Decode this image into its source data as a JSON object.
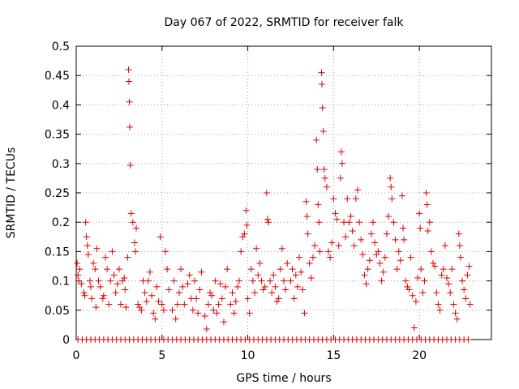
{
  "chart_data": {
    "type": "scatter",
    "title": "Day 067 of 2022, SRMTID for receiver falk",
    "xlabel": "GPS time / hours",
    "ylabel": "SRMTID / TECUs",
    "xlim": [
      0,
      24.2
    ],
    "ylim": [
      0,
      0.5
    ],
    "xticks": [
      0,
      5,
      10,
      15,
      20
    ],
    "xtick_labels": [
      "0",
      "5",
      "10",
      "15",
      "20"
    ],
    "yticks": [
      0,
      0.05,
      0.1,
      0.15,
      0.2,
      0.25,
      0.3,
      0.35,
      0.4,
      0.45,
      0.5
    ],
    "ytick_labels": [
      "0",
      "0.05",
      "0.1",
      "0.15",
      "0.2",
      "0.25",
      "0.3",
      "0.35",
      "0.4",
      "0.45",
      "0.5"
    ],
    "grid": true,
    "marker": "+",
    "color": "#dd0000",
    "series": [
      {
        "points": [
          [
            0.05,
            0.13
          ],
          [
            0.1,
            0.11
          ],
          [
            0.15,
            0.1
          ],
          [
            0.2,
            0.12
          ],
          [
            0.3,
            0.095
          ],
          [
            0.45,
            0.08
          ],
          [
            0.5,
            0.075
          ],
          [
            0.55,
            0.2
          ],
          [
            0.6,
            0.175
          ],
          [
            0.65,
            0.16
          ],
          [
            0.7,
            0.145
          ],
          [
            0.8,
            0.1
          ],
          [
            0.85,
            0.09
          ],
          [
            0.9,
            0.07
          ],
          [
            1.0,
            0.13
          ],
          [
            1.1,
            0.12
          ],
          [
            1.15,
            0.055
          ],
          [
            1.2,
            0.155
          ],
          [
            1.3,
            0.1
          ],
          [
            1.4,
            0.09
          ],
          [
            1.55,
            0.07
          ],
          [
            1.6,
            0.075
          ],
          [
            1.7,
            0.14
          ],
          [
            1.8,
            0.12
          ],
          [
            1.9,
            0.06
          ],
          [
            2.0,
            0.1
          ],
          [
            2.1,
            0.15
          ],
          [
            2.2,
            0.11
          ],
          [
            2.3,
            0.08
          ],
          [
            2.4,
            0.095
          ],
          [
            2.5,
            0.12
          ],
          [
            2.6,
            0.06
          ],
          [
            2.7,
            0.1
          ],
          [
            2.8,
            0.105
          ],
          [
            2.85,
            0.085
          ],
          [
            2.9,
            0.055
          ],
          [
            3.0,
            0.14
          ],
          [
            3.05,
            0.46
          ],
          [
            3.07,
            0.44
          ],
          [
            3.1,
            0.405
          ],
          [
            3.12,
            0.362
          ],
          [
            3.15,
            0.297
          ],
          [
            3.2,
            0.215
          ],
          [
            3.3,
            0.2
          ],
          [
            3.4,
            0.165
          ],
          [
            3.45,
            0.15
          ],
          [
            3.5,
            0.19
          ],
          [
            3.6,
            0.06
          ],
          [
            3.7,
            0.055
          ],
          [
            3.8,
            0.05
          ],
          [
            3.9,
            0.1
          ],
          [
            4.0,
            0.08
          ],
          [
            4.1,
            0.065
          ],
          [
            4.2,
            0.1
          ],
          [
            4.3,
            0.115
          ],
          [
            4.4,
            0.075
          ],
          [
            4.5,
            0.045
          ],
          [
            4.6,
            0.035
          ],
          [
            4.7,
            0.09
          ],
          [
            4.8,
            0.065
          ],
          [
            4.9,
            0.175
          ],
          [
            5.0,
            0.06
          ],
          [
            5.1,
            0.05
          ],
          [
            5.2,
            0.15
          ],
          [
            5.3,
            0.12
          ],
          [
            5.4,
            0.085
          ],
          [
            5.6,
            0.05
          ],
          [
            5.7,
            0.1
          ],
          [
            5.8,
            0.035
          ],
          [
            5.9,
            0.06
          ],
          [
            6.0,
            0.08
          ],
          [
            6.1,
            0.12
          ],
          [
            6.2,
            0.09
          ],
          [
            6.3,
            0.06
          ],
          [
            6.5,
            0.095
          ],
          [
            6.6,
            0.11
          ],
          [
            6.7,
            0.07
          ],
          [
            6.8,
            0.05
          ],
          [
            6.9,
            0.1
          ],
          [
            7.0,
            0.07
          ],
          [
            7.1,
            0.045
          ],
          [
            7.2,
            0.085
          ],
          [
            7.3,
            0.115
          ],
          [
            7.5,
            0.04
          ],
          [
            7.6,
            0.018
          ],
          [
            7.7,
            0.06
          ],
          [
            7.8,
            0.08
          ],
          [
            7.9,
            0.075
          ],
          [
            8.0,
            0.05
          ],
          [
            8.1,
            0.1
          ],
          [
            8.2,
            0.045
          ],
          [
            8.3,
            0.06
          ],
          [
            8.4,
            0.095
          ],
          [
            8.5,
            0.07
          ],
          [
            8.6,
            0.03
          ],
          [
            8.7,
            0.09
          ],
          [
            8.8,
            0.12
          ],
          [
            9.0,
            0.06
          ],
          [
            9.1,
            0.08
          ],
          [
            9.2,
            0.045
          ],
          [
            9.3,
            0.065
          ],
          [
            9.4,
            0.09
          ],
          [
            9.5,
            0.1
          ],
          [
            9.6,
            0.15
          ],
          [
            9.7,
            0.175
          ],
          [
            9.8,
            0.18
          ],
          [
            9.9,
            0.22
          ],
          [
            9.95,
            0.195
          ],
          [
            10.0,
            0.07
          ],
          [
            10.1,
            0.045
          ],
          [
            10.2,
            0.12
          ],
          [
            10.3,
            0.1
          ],
          [
            10.4,
            0.08
          ],
          [
            10.5,
            0.155
          ],
          [
            10.6,
            0.11
          ],
          [
            10.7,
            0.13
          ],
          [
            10.8,
            0.1
          ],
          [
            10.9,
            0.085
          ],
          [
            11.0,
            0.09
          ],
          [
            11.1,
            0.25
          ],
          [
            11.15,
            0.205
          ],
          [
            11.2,
            0.2
          ],
          [
            11.3,
            0.1
          ],
          [
            11.4,
            0.08
          ],
          [
            11.5,
            0.11
          ],
          [
            11.6,
            0.09
          ],
          [
            11.7,
            0.065
          ],
          [
            11.8,
            0.07
          ],
          [
            11.9,
            0.12
          ],
          [
            12.0,
            0.155
          ],
          [
            12.1,
            0.1
          ],
          [
            12.2,
            0.085
          ],
          [
            12.3,
            0.13
          ],
          [
            12.5,
            0.1
          ],
          [
            12.6,
            0.12
          ],
          [
            12.7,
            0.07
          ],
          [
            12.8,
            0.11
          ],
          [
            12.9,
            0.09
          ],
          [
            13.0,
            0.14
          ],
          [
            13.1,
            0.115
          ],
          [
            13.2,
            0.085
          ],
          [
            13.3,
            0.045
          ],
          [
            13.4,
            0.235
          ],
          [
            13.45,
            0.21
          ],
          [
            13.5,
            0.18
          ],
          [
            13.6,
            0.13
          ],
          [
            13.7,
            0.105
          ],
          [
            13.8,
            0.14
          ],
          [
            13.9,
            0.16
          ],
          [
            14.0,
            0.34
          ],
          [
            14.05,
            0.29
          ],
          [
            14.1,
            0.23
          ],
          [
            14.15,
            0.2
          ],
          [
            14.2,
            0.15
          ],
          [
            14.3,
            0.455
          ],
          [
            14.32,
            0.435
          ],
          [
            14.35,
            0.395
          ],
          [
            14.4,
            0.355
          ],
          [
            14.45,
            0.29
          ],
          [
            14.5,
            0.275
          ],
          [
            14.6,
            0.26
          ],
          [
            14.7,
            0.15
          ],
          [
            14.8,
            0.14
          ],
          [
            14.9,
            0.165
          ],
          [
            15.0,
            0.24
          ],
          [
            15.1,
            0.215
          ],
          [
            15.2,
            0.205
          ],
          [
            15.3,
            0.16
          ],
          [
            15.4,
            0.275
          ],
          [
            15.45,
            0.32
          ],
          [
            15.5,
            0.3
          ],
          [
            15.6,
            0.2
          ],
          [
            15.7,
            0.175
          ],
          [
            15.8,
            0.24
          ],
          [
            15.9,
            0.2
          ],
          [
            16.0,
            0.21
          ],
          [
            16.1,
            0.185
          ],
          [
            16.2,
            0.16
          ],
          [
            16.3,
            0.24
          ],
          [
            16.4,
            0.255
          ],
          [
            16.5,
            0.2
          ],
          [
            16.6,
            0.17
          ],
          [
            16.7,
            0.145
          ],
          [
            16.8,
            0.11
          ],
          [
            16.9,
            0.095
          ],
          [
            17.0,
            0.12
          ],
          [
            17.1,
            0.135
          ],
          [
            17.2,
            0.18
          ],
          [
            17.3,
            0.2
          ],
          [
            17.4,
            0.165
          ],
          [
            17.5,
            0.145
          ],
          [
            17.6,
            0.15
          ],
          [
            17.7,
            0.13
          ],
          [
            17.8,
            0.1
          ],
          [
            17.9,
            0.115
          ],
          [
            18.0,
            0.14
          ],
          [
            18.1,
            0.18
          ],
          [
            18.2,
            0.21
          ],
          [
            18.3,
            0.275
          ],
          [
            18.35,
            0.26
          ],
          [
            18.4,
            0.24
          ],
          [
            18.5,
            0.2
          ],
          [
            18.6,
            0.17
          ],
          [
            18.7,
            0.12
          ],
          [
            18.8,
            0.15
          ],
          [
            18.9,
            0.135
          ],
          [
            19.0,
            0.245
          ],
          [
            19.05,
            0.19
          ],
          [
            19.1,
            0.17
          ],
          [
            19.2,
            0.1
          ],
          [
            19.3,
            0.09
          ],
          [
            19.4,
            0.085
          ],
          [
            19.5,
            0.14
          ],
          [
            19.6,
            0.075
          ],
          [
            19.7,
            0.02
          ],
          [
            19.8,
            0.065
          ],
          [
            19.9,
            0.105
          ],
          [
            20.0,
            0.215
          ],
          [
            20.05,
            0.19
          ],
          [
            20.1,
            0.12
          ],
          [
            20.2,
            0.08
          ],
          [
            20.3,
            0.1
          ],
          [
            20.4,
            0.25
          ],
          [
            20.45,
            0.23
          ],
          [
            20.5,
            0.185
          ],
          [
            20.6,
            0.2
          ],
          [
            20.7,
            0.15
          ],
          [
            20.8,
            0.13
          ],
          [
            20.9,
            0.125
          ],
          [
            21.0,
            0.08
          ],
          [
            21.1,
            0.06
          ],
          [
            21.2,
            0.05
          ],
          [
            21.3,
            0.11
          ],
          [
            21.4,
            0.12
          ],
          [
            21.5,
            0.16
          ],
          [
            21.6,
            0.105
          ],
          [
            21.7,
            0.095
          ],
          [
            21.8,
            0.08
          ],
          [
            21.9,
            0.12
          ],
          [
            22.0,
            0.06
          ],
          [
            22.1,
            0.045
          ],
          [
            22.2,
            0.035
          ],
          [
            22.3,
            0.18
          ],
          [
            22.35,
            0.16
          ],
          [
            22.4,
            0.14
          ],
          [
            22.5,
            0.1
          ],
          [
            22.6,
            0.085
          ],
          [
            22.7,
            0.07
          ],
          [
            22.8,
            0.11
          ],
          [
            22.9,
            0.125
          ],
          [
            22.95,
            0.06
          ]
        ]
      }
    ],
    "zero_points_x": [
      0.1,
      0.35,
      0.6,
      0.85,
      1.1,
      1.35,
      1.6,
      1.85,
      2.1,
      2.35,
      2.6,
      2.85,
      3.1,
      3.35,
      3.6,
      3.85,
      4.1,
      4.35,
      4.6,
      4.85,
      5.1,
      5.35,
      5.6,
      5.85,
      6.1,
      6.35,
      6.6,
      6.85,
      7.1,
      7.35,
      7.6,
      7.85,
      8.1,
      8.35,
      8.6,
      8.85,
      9.1,
      9.35,
      9.6,
      9.85,
      10.1,
      10.35,
      10.6,
      10.85,
      11.1,
      11.35,
      11.6,
      11.85,
      12.1,
      12.35,
      12.6,
      12.85,
      13.1,
      13.35,
      13.6,
      13.85,
      14.1,
      14.35,
      14.6,
      14.85,
      15.1,
      15.35,
      15.6,
      15.85,
      16.1,
      16.35,
      16.6,
      16.85,
      17.1,
      17.35,
      17.6,
      17.85,
      18.1,
      18.35,
      18.6,
      18.85,
      19.1,
      19.35,
      19.6,
      19.85,
      20.1,
      20.35,
      20.6,
      20.85,
      21.1,
      21.35,
      21.6,
      21.85,
      22.1,
      22.35,
      22.6,
      22.85
    ]
  }
}
